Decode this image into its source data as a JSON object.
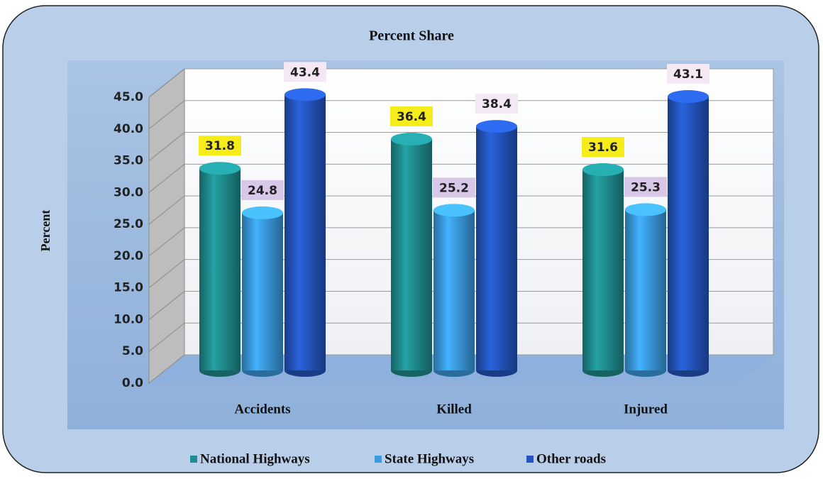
{
  "chart_data": {
    "type": "bar",
    "title": "Percent Share",
    "ylabel": "Percent",
    "categories": [
      "Accidents",
      "Killed",
      "Injured"
    ],
    "series": [
      {
        "name": "National Highways",
        "color": "#1f8d8f",
        "label_color": "#f5ec1a",
        "values": [
          31.8,
          36.4,
          31.6
        ]
      },
      {
        "name": "State Highways",
        "color": "#3a9be0",
        "label_color": "#d9c7e8",
        "values": [
          24.8,
          25.2,
          25.3
        ]
      },
      {
        "name": "Other roads",
        "color": "#2456c0",
        "label_color": "#f3e8f3",
        "values": [
          43.4,
          38.4,
          43.1
        ]
      }
    ],
    "ylim": [
      0,
      45
    ],
    "yticks": [
      {
        "value": 0,
        "label": "0.0"
      },
      {
        "value": 5,
        "label": "5.0"
      },
      {
        "value": 10,
        "label": "10.0"
      },
      {
        "value": 15,
        "label": "15.0"
      },
      {
        "value": 20,
        "label": "20.0"
      },
      {
        "value": 25,
        "label": "25.0"
      },
      {
        "value": 30,
        "label": "30.0"
      },
      {
        "value": 35,
        "label": "35.0"
      },
      {
        "value": 40,
        "label": "40.0"
      },
      {
        "value": 45,
        "label": "45.0"
      }
    ],
    "grid": true,
    "legend": "bottom"
  }
}
